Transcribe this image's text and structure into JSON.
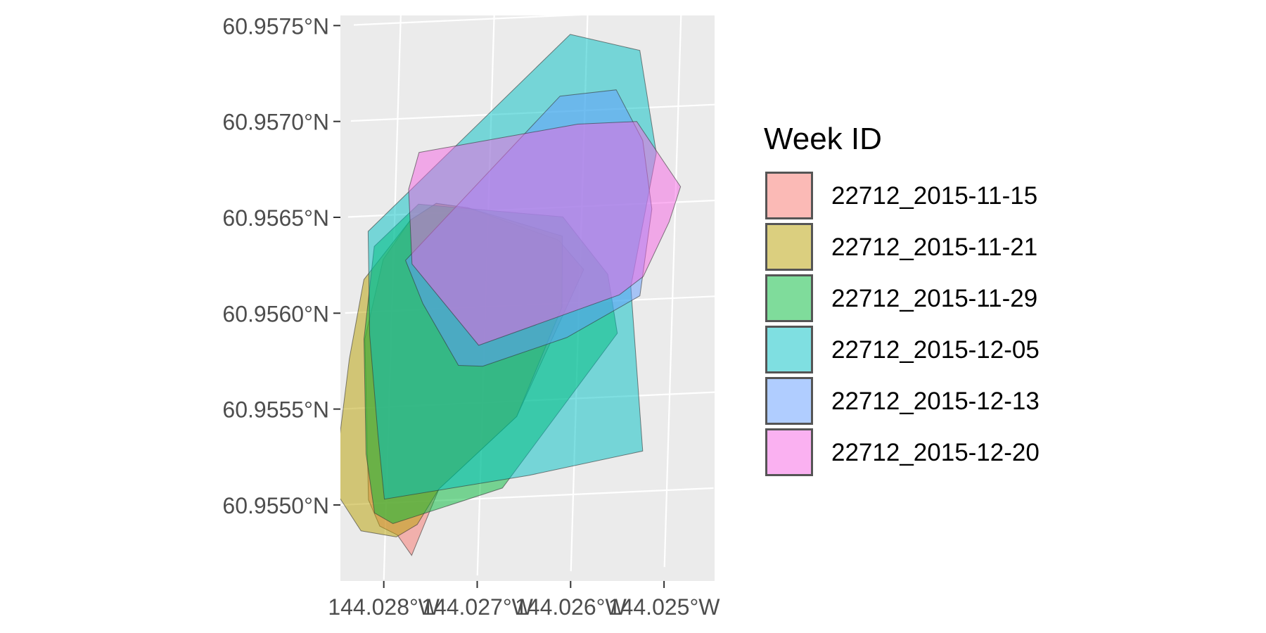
{
  "chart_data": {
    "type": "map-polygons",
    "title": "",
    "xlabel": "",
    "ylabel": "",
    "x_ticks": [
      {
        "value": -144.028,
        "label": "144.028°W"
      },
      {
        "value": -144.027,
        "label": "144.027°W"
      },
      {
        "value": -144.026,
        "label": "144.026°W"
      },
      {
        "value": -144.025,
        "label": "144.025°W"
      }
    ],
    "y_ticks": [
      {
        "value": 60.955,
        "label": "60.9550°N"
      },
      {
        "value": 60.9555,
        "label": "60.9555°N"
      },
      {
        "value": 60.956,
        "label": "60.9560°N"
      },
      {
        "value": 60.9565,
        "label": "60.9565°N"
      },
      {
        "value": 60.957,
        "label": "60.9570°N"
      },
      {
        "value": 60.9575,
        "label": "60.9575°N"
      }
    ],
    "xlim": [
      -144.0285,
      -144.0245
    ],
    "ylim": [
      60.9546,
      60.9576
    ],
    "grid": true,
    "legend": {
      "title": "Week ID",
      "position": "right"
    },
    "series": [
      {
        "name": "22712_2015-11-15",
        "color": "#F8766D",
        "points": [
          [
            -144.02722,
            60.95652
          ],
          [
            -144.02624,
            60.95633
          ],
          [
            -144.02596,
            60.95617
          ],
          [
            -144.02663,
            60.95542
          ],
          [
            -144.02744,
            60.95506
          ],
          [
            -144.02771,
            60.95472
          ],
          [
            -144.02787,
            60.95483
          ],
          [
            -144.02806,
            60.95488
          ],
          [
            -144.02819,
            60.95502
          ],
          [
            -144.02828,
            60.95586
          ],
          [
            -144.02811,
            60.95627
          ],
          [
            -144.02783,
            60.95647
          ],
          [
            -144.02756,
            60.95655
          ]
        ]
      },
      {
        "name": "22712_2015-11-21",
        "color": "#B79F00",
        "points": [
          [
            -144.02722,
            60.95652
          ],
          [
            -144.0262,
            60.95635
          ],
          [
            -144.02618,
            60.95598
          ],
          [
            -144.02663,
            60.95542
          ],
          [
            -144.02744,
            60.95506
          ],
          [
            -144.02766,
            60.95488
          ],
          [
            -144.02788,
            60.95482
          ],
          [
            -144.02826,
            60.95486
          ],
          [
            -144.02857,
            60.95509
          ],
          [
            -144.02844,
            60.95576
          ],
          [
            -144.02831,
            60.95617
          ],
          [
            -144.02783,
            60.95647
          ],
          [
            -144.02756,
            60.95655
          ]
        ]
      },
      {
        "name": "22712_2015-11-29",
        "color": "#00BA38",
        "points": [
          [
            -144.02775,
            60.95655
          ],
          [
            -144.0262,
            60.95645
          ],
          [
            -144.0257,
            60.95614
          ],
          [
            -144.02558,
            60.95583
          ],
          [
            -144.02676,
            60.95505
          ],
          [
            -144.02792,
            60.95489
          ],
          [
            -144.02812,
            60.95495
          ],
          [
            -144.02823,
            60.95526
          ],
          [
            -144.02829,
            60.95586
          ],
          [
            -144.02821,
            60.95634
          ]
        ]
      },
      {
        "name": "22712_2015-12-05",
        "color": "#00BFC4",
        "points": [
          [
            -144.02618,
            60.9574
          ],
          [
            -144.02543,
            60.9573
          ],
          [
            -144.02522,
            60.95676
          ],
          [
            -144.02545,
            60.95607
          ],
          [
            -144.02527,
            60.95521
          ],
          [
            -144.02648,
            60.95511
          ],
          [
            -144.02802,
            60.95502
          ],
          [
            -144.02811,
            60.95536
          ],
          [
            -144.02823,
            60.95588
          ],
          [
            -144.02828,
            60.95642
          ]
        ]
      },
      {
        "name": "22712_2015-12-13",
        "color": "#619CFF",
        "points": [
          [
            -144.02627,
            60.95708
          ],
          [
            -144.02567,
            60.9571
          ],
          [
            -144.02537,
            60.95683
          ],
          [
            -144.02525,
            60.95647
          ],
          [
            -144.02535,
            60.95602
          ],
          [
            -144.02612,
            60.95582
          ],
          [
            -144.02701,
            60.95569
          ],
          [
            -144.02727,
            60.9557
          ],
          [
            -144.02767,
            60.95603
          ],
          [
            -144.02787,
            60.95626
          ]
        ]
      },
      {
        "name": "22712_2015-12-20",
        "color": "#F564E3",
        "points": [
          [
            -144.02776,
            60.95682
          ],
          [
            -144.02607,
            60.95693
          ],
          [
            -144.02544,
            60.95693
          ],
          [
            -144.02495,
            60.95658
          ],
          [
            -144.02506,
            60.9564
          ],
          [
            -144.02532,
            60.95612
          ],
          [
            -144.02557,
            60.95603
          ],
          [
            -144.02706,
            60.9558
          ],
          [
            -144.0278,
            60.95624
          ],
          [
            -144.02786,
            60.95663
          ]
        ]
      }
    ]
  }
}
